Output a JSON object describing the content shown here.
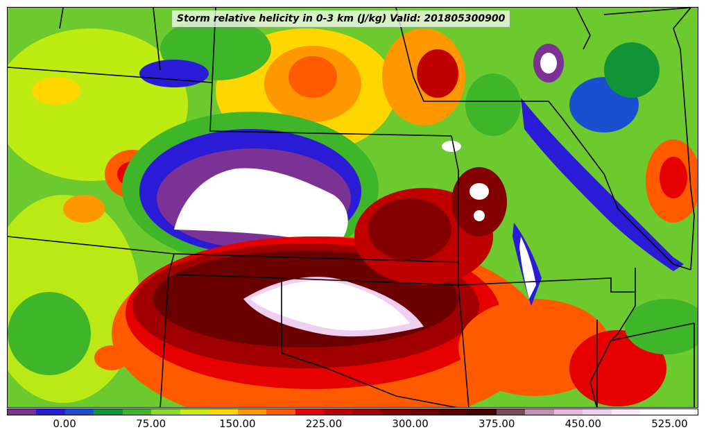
{
  "title": "Storm relative helicity in 0-3 km (J/kg) Valid: 201805300900",
  "colorbar": {
    "colors": [
      "#7b3294",
      "#2a1bd6",
      "#1a4fd0",
      "#119438",
      "#3fb52a",
      "#88dc2b",
      "#c8ee10",
      "#ffd600",
      "#ff9800",
      "#ff5a00",
      "#e60000",
      "#c00000",
      "#a00000",
      "#820000",
      "#6a0000",
      "#5a0000",
      "#4a0000",
      "#7a4a5a",
      "#c090b0",
      "#e8b8e0",
      "#f0d0f0",
      "#fae8fa",
      "#ffffff",
      "#ffffff"
    ],
    "tick_labels": [
      "0.00",
      "75.00",
      "150.00",
      "225.00",
      "300.00",
      "375.00",
      "450.00",
      "525.00"
    ]
  }
}
